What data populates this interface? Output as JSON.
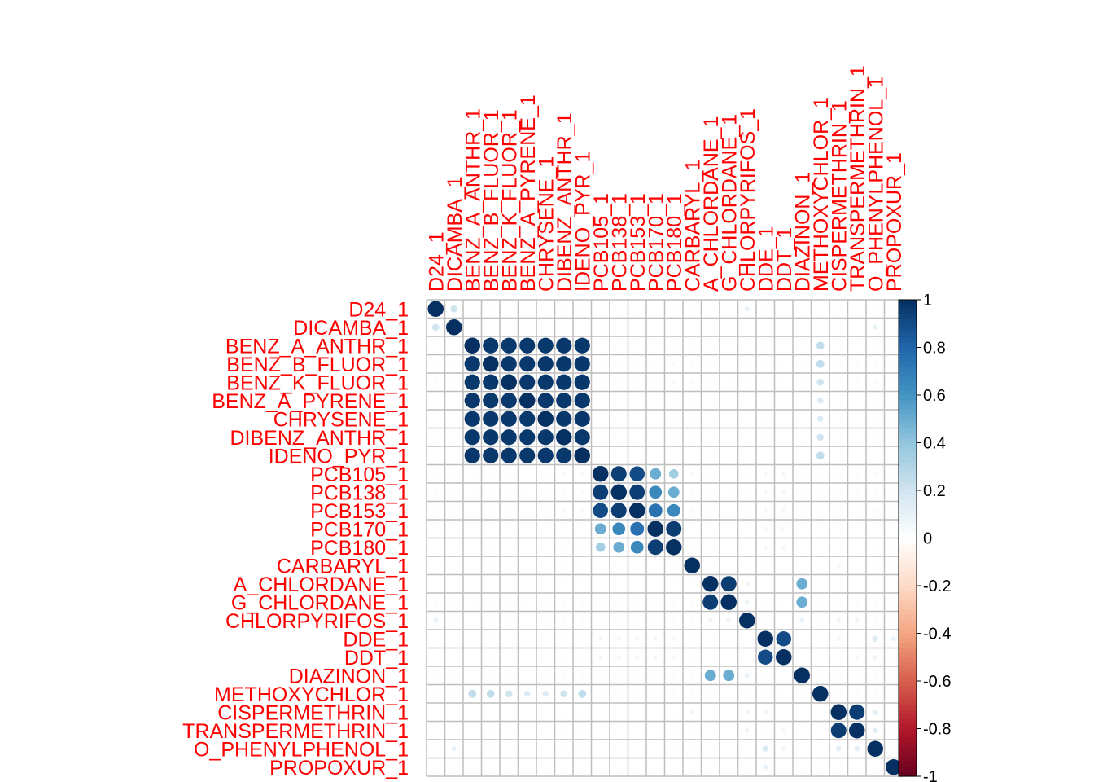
{
  "chart_data": {
    "type": "heatmap",
    "style": "corrplot-circle",
    "colors": {
      "label": "#ff0000",
      "grid": "#bebebe",
      "scale": [
        "#67001f",
        "#b2182b",
        "#d6604d",
        "#f4a582",
        "#fddbc7",
        "#ffffff",
        "#d1e5f0",
        "#92c5de",
        "#4393c3",
        "#2166ac",
        "#053061"
      ]
    },
    "variables": [
      "D24_1",
      "DICAMBA_1",
      "BENZ_A_ANTHR_1",
      "BENZ_B_FLUOR_1",
      "BENZ_K_FLUOR_1",
      "BENZ_A_PYRENE_1",
      "CHRYSENE_1",
      "DIBENZ_ANTHR_1",
      "IDENO_PYR_1",
      "PCB105_1",
      "PCB138_1",
      "PCB153_1",
      "PCB170_1",
      "PCB180_1",
      "CARBARYL_1",
      "A_CHLORDANE_1",
      "G_CHLORDANE_1",
      "CHLORPYRIFOS_1",
      "DDE_1",
      "DDT_1",
      "DIAZINON_1",
      "METHOXYCHLOR_1",
      "CISPERMETHRIN_1",
      "TRANSPERMETHRIN_1",
      "O_PHENYLPHENOL_1",
      "PROPOXUR_1"
    ],
    "colorbar": {
      "range": [
        -1,
        1
      ],
      "ticks": [
        "1",
        "0.8",
        "0.6",
        "0.4",
        "0.2",
        "0",
        "-0.2",
        "-0.4",
        "-0.6",
        "-0.8",
        "-1"
      ]
    },
    "correlations": [
      {
        "r": 0,
        "c": 1,
        "v": 0.2
      },
      {
        "r": 0,
        "c": 17,
        "v": 0.1
      },
      {
        "r": 1,
        "c": 24,
        "v": 0.1
      },
      {
        "r": 2,
        "c": 21,
        "v": 0.25
      },
      {
        "r": 3,
        "c": 21,
        "v": 0.25
      },
      {
        "r": 4,
        "c": 21,
        "v": 0.2
      },
      {
        "r": 5,
        "c": 21,
        "v": 0.15
      },
      {
        "r": 6,
        "c": 21,
        "v": 0.15
      },
      {
        "r": 7,
        "c": 21,
        "v": 0.2
      },
      {
        "r": 8,
        "c": 21,
        "v": 0.25
      },
      {
        "r": 9,
        "c": 10,
        "v": 0.95
      },
      {
        "r": 9,
        "c": 11,
        "v": 0.9
      },
      {
        "r": 9,
        "c": 12,
        "v": 0.5
      },
      {
        "r": 9,
        "c": 13,
        "v": 0.35
      },
      {
        "r": 10,
        "c": 11,
        "v": 0.95
      },
      {
        "r": 10,
        "c": 12,
        "v": 0.65
      },
      {
        "r": 10,
        "c": 13,
        "v": 0.5
      },
      {
        "r": 11,
        "c": 12,
        "v": 0.75
      },
      {
        "r": 11,
        "c": 13,
        "v": 0.65
      },
      {
        "r": 12,
        "c": 13,
        "v": 0.95
      },
      {
        "r": 9,
        "c": 18,
        "v": 0.08
      },
      {
        "r": 10,
        "c": 19,
        "v": 0.08
      },
      {
        "r": 12,
        "c": 19,
        "v": 0.06
      },
      {
        "r": 15,
        "c": 16,
        "v": 0.95
      },
      {
        "r": 15,
        "c": 20,
        "v": 0.5
      },
      {
        "r": 16,
        "c": 20,
        "v": 0.5
      },
      {
        "r": 17,
        "c": 22,
        "v": 0.08
      },
      {
        "r": 17,
        "c": 23,
        "v": 0.08
      },
      {
        "r": 17,
        "c": 20,
        "v": 0.1
      },
      {
        "r": 18,
        "c": 19,
        "v": 0.9
      },
      {
        "r": 18,
        "c": 24,
        "v": 0.15
      },
      {
        "r": 19,
        "c": 24,
        "v": 0.08
      },
      {
        "r": 22,
        "c": 23,
        "v": 0.95
      },
      {
        "r": 22,
        "c": 24,
        "v": 0.12
      },
      {
        "r": 23,
        "c": 24,
        "v": 0.12
      },
      {
        "r": 18,
        "c": 22,
        "v": 0.08
      },
      {
        "r": 19,
        "c": 23,
        "v": 0.06
      },
      {
        "r": 18,
        "c": 25,
        "v": 0.1
      },
      {
        "r": 14,
        "c": 22,
        "v": 0.06
      },
      {
        "r": 15,
        "c": 17,
        "v": 0.08
      },
      {
        "r": 16,
        "c": 17,
        "v": 0.08
      }
    ],
    "block_high": [
      {
        "from": 2,
        "to": 8,
        "v": 0.97
      }
    ],
    "block_low_rows": [
      {
        "rows": [
          18,
          19
        ],
        "cols": [
          9,
          10,
          11,
          12,
          13
        ],
        "v": 0.06
      }
    ]
  }
}
